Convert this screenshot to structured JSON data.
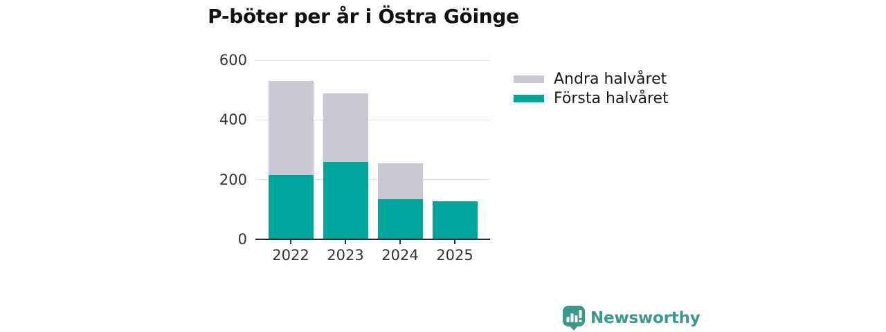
{
  "title": "P-böter per år i Östra Göinge",
  "chart_data": {
    "type": "bar",
    "stacked": true,
    "title": "P-böter per år i Östra Göinge",
    "categories": [
      "2022",
      "2023",
      "2024",
      "2025"
    ],
    "series": [
      {
        "name": "Första halvåret",
        "color": "#00A69C",
        "values": [
          215,
          260,
          135,
          128
        ]
      },
      {
        "name": "Andra halvåret",
        "color": "#C9C7D1",
        "values": [
          315,
          230,
          120,
          0
        ]
      }
    ],
    "totals": [
      530,
      490,
      255,
      128
    ],
    "xlabel": "",
    "ylabel": "",
    "ylim": [
      0,
      600
    ],
    "yticks": [
      0,
      200,
      400,
      600
    ],
    "grid": "horizontal",
    "legend_position": "right",
    "legend_order": [
      "Andra halvåret",
      "Första halvåret"
    ]
  },
  "colors": {
    "first_half": "#00A69C",
    "second_half": "#C9C7D1",
    "gridline": "#e1e1e1",
    "axis": "#2b2b2b",
    "tick_text": "#333333",
    "title_text": "#111111",
    "brand": "#3a998c"
  },
  "branding": {
    "logo_text": "Newsworthy",
    "logo_icon": "speech-bubble-bar-chart-icon"
  }
}
